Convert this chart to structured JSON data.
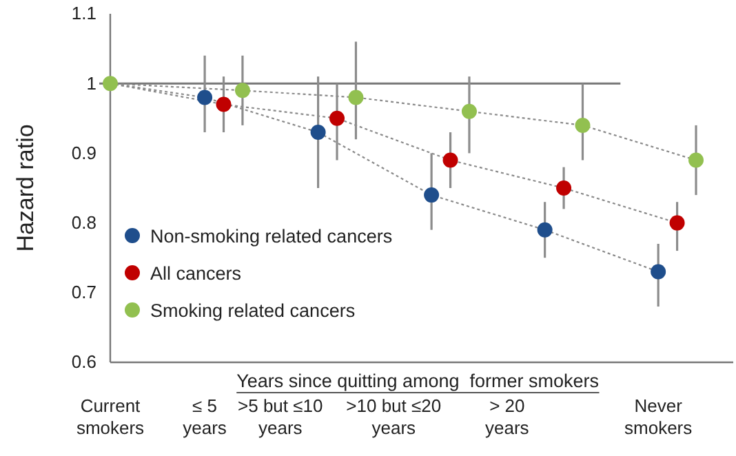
{
  "chart_data": {
    "type": "scatter",
    "ylabel": "Hazard ratio",
    "categories": [
      "Current smokers",
      null,
      null,
      null,
      null,
      "≤ 5 years",
      null,
      null,
      null,
      ">5 but ≤10 years",
      null,
      null,
      null,
      null,
      null,
      ">10 but ≤20 years",
      null,
      null,
      null,
      null,
      null,
      "> 20 years",
      null,
      null,
      null,
      null,
      null,
      null,
      null,
      "Never smokers",
      null,
      null
    ],
    "series": [
      {
        "type": "line",
        "color": "#8a8a8a",
        "line_style": "dotted",
        "marker": "none",
        "values": [
          1,
          null,
          null,
          null,
          null,
          0.98,
          null,
          null,
          null,
          null,
          null,
          0.93,
          null,
          null,
          null,
          null,
          null,
          0.84,
          null,
          null,
          null,
          null,
          null,
          0.79,
          null,
          null,
          null,
          null,
          null,
          0.73,
          null,
          null
        ]
      },
      {
        "type": "line",
        "color": "#8a8a8a",
        "line_style": "dotted",
        "marker": "none",
        "values": [
          1,
          null,
          null,
          null,
          null,
          null,
          0.97,
          null,
          null,
          null,
          null,
          null,
          0.95,
          null,
          null,
          null,
          null,
          null,
          0.89,
          null,
          null,
          null,
          null,
          null,
          0.85,
          null,
          null,
          null,
          null,
          null,
          0.8,
          null
        ]
      },
      {
        "type": "line",
        "color": "#8a8a8a",
        "line_style": "dotted",
        "marker": "none",
        "values": [
          1,
          null,
          null,
          null,
          null,
          null,
          null,
          0.99,
          null,
          null,
          null,
          null,
          null,
          0.98,
          null,
          null,
          null,
          null,
          null,
          0.96,
          null,
          null,
          null,
          null,
          null,
          0.94,
          null,
          null,
          null,
          null,
          null,
          0.89
        ]
      },
      {
        "name": "Non-smoking related cancers",
        "color": "#1f4e8c",
        "values": [
          null,
          null,
          null,
          null,
          null,
          0.98,
          null,
          null,
          null,
          null,
          null,
          0.93,
          null,
          null,
          null,
          null,
          null,
          0.84,
          null,
          null,
          null,
          null,
          null,
          0.79,
          null,
          null,
          null,
          null,
          null,
          0.73,
          null,
          null
        ],
        "errors": [
          null,
          null,
          null,
          null,
          null,
          [
            0.93,
            1.04
          ],
          null,
          null,
          null,
          null,
          null,
          [
            0.85,
            1.01
          ],
          null,
          null,
          null,
          null,
          null,
          [
            0.79,
            0.9
          ],
          null,
          null,
          null,
          null,
          null,
          [
            0.75,
            0.83
          ],
          null,
          null,
          null,
          null,
          null,
          [
            0.68,
            0.77
          ],
          null,
          null
        ]
      },
      {
        "name": "All cancers",
        "color": "#c00000",
        "values": [
          null,
          null,
          null,
          null,
          null,
          null,
          0.97,
          null,
          null,
          null,
          null,
          null,
          0.95,
          null,
          null,
          null,
          null,
          null,
          0.89,
          null,
          null,
          null,
          null,
          null,
          0.85,
          null,
          null,
          null,
          null,
          null,
          0.8,
          null
        ],
        "errors": [
          null,
          null,
          null,
          null,
          null,
          null,
          [
            0.93,
            1.01
          ],
          null,
          null,
          null,
          null,
          null,
          [
            0.89,
            1.0
          ],
          null,
          null,
          null,
          null,
          null,
          [
            0.85,
            0.93
          ],
          null,
          null,
          null,
          null,
          null,
          [
            0.82,
            0.88
          ],
          null,
          null,
          null,
          null,
          null,
          [
            0.76,
            0.83
          ],
          null
        ]
      },
      {
        "name": "Smoking related cancers",
        "color": "#92c050",
        "values": [
          1,
          null,
          null,
          null,
          null,
          null,
          null,
          0.99,
          null,
          null,
          null,
          null,
          null,
          0.98,
          null,
          null,
          null,
          null,
          null,
          0.96,
          null,
          null,
          null,
          null,
          null,
          0.94,
          null,
          null,
          null,
          null,
          null,
          0.89
        ],
        "errors": [
          null,
          null,
          null,
          null,
          null,
          null,
          null,
          [
            0.94,
            1.04
          ],
          null,
          null,
          null,
          null,
          null,
          [
            0.92,
            1.06
          ],
          null,
          null,
          null,
          null,
          null,
          [
            0.9,
            1.01
          ],
          null,
          null,
          null,
          null,
          null,
          [
            0.89,
            1.0
          ],
          null,
          null,
          null,
          null,
          null,
          [
            0.84,
            0.94
          ]
        ]
      }
    ],
    "ylim": [
      0.6,
      1.1
    ],
    "yticks": [
      0.6,
      0.7,
      0.8,
      0.9,
      1,
      1.1
    ],
    "ref_lines": [
      {
        "axis": "y",
        "value": 1,
        "color": "#777777"
      }
    ],
    "annotations": [
      "Years since quitting among  former smokers"
    ],
    "marker": "circle",
    "legend": "bottom left",
    "grid": false
  }
}
